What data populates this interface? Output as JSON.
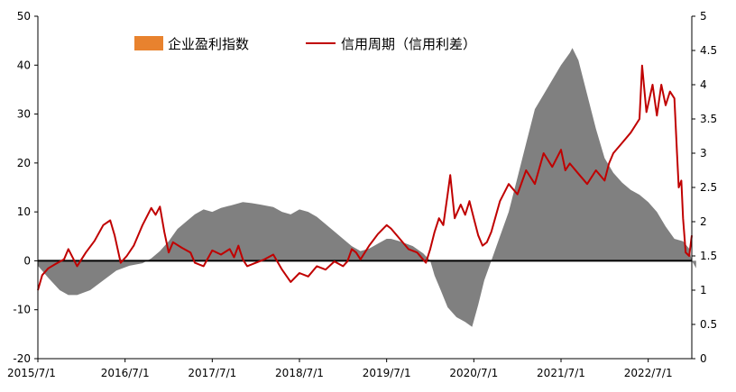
{
  "chart_data": {
    "type": "area",
    "title": "",
    "xlabel": "",
    "ylabel": "",
    "x_tick_labels": [
      "2015/7/1",
      "2016/7/1",
      "2017/7/1",
      "2018/7/1",
      "2019/7/1",
      "2020/7/1",
      "2021/7/1",
      "2022/7/1"
    ],
    "x_tick_years": [
      2015.5,
      2016.5,
      2017.5,
      2018.5,
      2019.5,
      2020.5,
      2021.5,
      2022.5
    ],
    "xlim": [
      2015.5,
      2023.0
    ],
    "y_left_ticks": [
      "50",
      "40",
      "30",
      "20",
      "10",
      "0",
      "-10",
      "-20"
    ],
    "y_right_ticks": [
      "5",
      "4.5",
      "4",
      "3.5",
      "3",
      "2.5",
      "2",
      "1.5",
      "1",
      "0.5",
      "0"
    ],
    "ylim_left": [
      -20,
      50
    ],
    "ylim_right": [
      0,
      5
    ],
    "legend_position": "top-center",
    "colors": {
      "area": "#808080",
      "line": "#c00000",
      "legend_swatch": "#e8822e"
    },
    "series": [
      {
        "name": "企业盈利指数",
        "axis": "left",
        "type": "area",
        "points": [
          [
            2015.5,
            -1.0
          ],
          [
            2015.62,
            -3.5
          ],
          [
            2015.75,
            -6.0
          ],
          [
            2015.85,
            -7.0
          ],
          [
            2015.95,
            -7.0
          ],
          [
            2016.1,
            -6.0
          ],
          [
            2016.25,
            -4.0
          ],
          [
            2016.4,
            -2.0
          ],
          [
            2016.55,
            -1.0
          ],
          [
            2016.7,
            -0.5
          ],
          [
            2016.8,
            0.5
          ],
          [
            2016.9,
            2.0
          ],
          [
            2017.0,
            4.0
          ],
          [
            2017.1,
            6.5
          ],
          [
            2017.2,
            8.0
          ],
          [
            2017.3,
            9.5
          ],
          [
            2017.4,
            10.5
          ],
          [
            2017.5,
            10.0
          ],
          [
            2017.6,
            10.8
          ],
          [
            2017.75,
            11.5
          ],
          [
            2017.85,
            12.0
          ],
          [
            2017.95,
            11.8
          ],
          [
            2018.05,
            11.5
          ],
          [
            2018.2,
            11.0
          ],
          [
            2018.3,
            10.0
          ],
          [
            2018.4,
            9.5
          ],
          [
            2018.5,
            10.5
          ],
          [
            2018.6,
            10.0
          ],
          [
            2018.7,
            9.0
          ],
          [
            2018.8,
            7.5
          ],
          [
            2018.9,
            6.0
          ],
          [
            2019.0,
            4.5
          ],
          [
            2019.1,
            3.0
          ],
          [
            2019.2,
            2.0
          ],
          [
            2019.3,
            2.5
          ],
          [
            2019.4,
            3.5
          ],
          [
            2019.5,
            4.5
          ],
          [
            2019.55,
            4.5
          ],
          [
            2019.65,
            4.0
          ],
          [
            2019.8,
            3.0
          ],
          [
            2019.92,
            1.5
          ],
          [
            2020.0,
            0.0
          ],
          [
            2020.05,
            -3.0
          ],
          [
            2020.12,
            -6.0
          ],
          [
            2020.2,
            -9.5
          ],
          [
            2020.3,
            -11.5
          ],
          [
            2020.4,
            -12.5
          ],
          [
            2020.48,
            -13.5
          ],
          [
            2020.55,
            -9.0
          ],
          [
            2020.62,
            -4.0
          ],
          [
            2020.7,
            0.0
          ],
          [
            2020.8,
            5.0
          ],
          [
            2020.9,
            10.0
          ],
          [
            2021.0,
            17.0
          ],
          [
            2021.1,
            24.0
          ],
          [
            2021.2,
            31.0
          ],
          [
            2021.3,
            34.0
          ],
          [
            2021.4,
            37.0
          ],
          [
            2021.5,
            40.0
          ],
          [
            2021.6,
            42.5
          ],
          [
            2021.63,
            43.5
          ],
          [
            2021.7,
            41.0
          ],
          [
            2021.8,
            34.0
          ],
          [
            2021.9,
            27.0
          ],
          [
            2022.0,
            21.0
          ],
          [
            2022.1,
            18.0
          ],
          [
            2022.2,
            16.0
          ],
          [
            2022.3,
            14.5
          ],
          [
            2022.4,
            13.5
          ],
          [
            2022.5,
            12.0
          ],
          [
            2022.6,
            10.0
          ],
          [
            2022.7,
            7.0
          ],
          [
            2022.8,
            4.5
          ],
          [
            2022.9,
            4.0
          ],
          [
            2022.97,
            2.5
          ],
          [
            2023.0,
            0.0
          ],
          [
            2023.05,
            -1.5
          ]
        ]
      },
      {
        "name": "信用周期（信用利差）",
        "axis": "right",
        "type": "line",
        "points": [
          [
            2015.5,
            1.0
          ],
          [
            2015.55,
            1.22
          ],
          [
            2015.62,
            1.32
          ],
          [
            2015.7,
            1.38
          ],
          [
            2015.8,
            1.45
          ],
          [
            2015.85,
            1.6
          ],
          [
            2015.95,
            1.35
          ],
          [
            2016.05,
            1.55
          ],
          [
            2016.15,
            1.72
          ],
          [
            2016.25,
            1.95
          ],
          [
            2016.33,
            2.02
          ],
          [
            2016.38,
            1.8
          ],
          [
            2016.45,
            1.4
          ],
          [
            2016.52,
            1.5
          ],
          [
            2016.6,
            1.65
          ],
          [
            2016.7,
            1.95
          ],
          [
            2016.8,
            2.2
          ],
          [
            2016.85,
            2.1
          ],
          [
            2016.9,
            2.22
          ],
          [
            2016.95,
            1.85
          ],
          [
            2017.0,
            1.55
          ],
          [
            2017.05,
            1.7
          ],
          [
            2017.15,
            1.62
          ],
          [
            2017.25,
            1.55
          ],
          [
            2017.3,
            1.4
          ],
          [
            2017.4,
            1.35
          ],
          [
            2017.5,
            1.58
          ],
          [
            2017.6,
            1.52
          ],
          [
            2017.7,
            1.6
          ],
          [
            2017.75,
            1.48
          ],
          [
            2017.8,
            1.65
          ],
          [
            2017.85,
            1.45
          ],
          [
            2017.9,
            1.35
          ],
          [
            2018.0,
            1.4
          ],
          [
            2018.1,
            1.45
          ],
          [
            2018.2,
            1.52
          ],
          [
            2018.3,
            1.3
          ],
          [
            2018.4,
            1.12
          ],
          [
            2018.5,
            1.25
          ],
          [
            2018.6,
            1.2
          ],
          [
            2018.7,
            1.35
          ],
          [
            2018.8,
            1.3
          ],
          [
            2018.9,
            1.42
          ],
          [
            2019.0,
            1.35
          ],
          [
            2019.05,
            1.42
          ],
          [
            2019.1,
            1.6
          ],
          [
            2019.15,
            1.55
          ],
          [
            2019.2,
            1.45
          ],
          [
            2019.3,
            1.65
          ],
          [
            2019.4,
            1.82
          ],
          [
            2019.5,
            1.95
          ],
          [
            2019.55,
            1.9
          ],
          [
            2019.65,
            1.75
          ],
          [
            2019.75,
            1.6
          ],
          [
            2019.85,
            1.55
          ],
          [
            2019.95,
            1.4
          ],
          [
            2020.0,
            1.6
          ],
          [
            2020.05,
            1.85
          ],
          [
            2020.1,
            2.05
          ],
          [
            2020.15,
            1.95
          ],
          [
            2020.2,
            2.4
          ],
          [
            2020.23,
            2.68
          ],
          [
            2020.28,
            2.05
          ],
          [
            2020.35,
            2.25
          ],
          [
            2020.4,
            2.1
          ],
          [
            2020.45,
            2.3
          ],
          [
            2020.5,
            2.05
          ],
          [
            2020.55,
            1.8
          ],
          [
            2020.6,
            1.65
          ],
          [
            2020.65,
            1.7
          ],
          [
            2020.7,
            1.85
          ],
          [
            2020.8,
            2.3
          ],
          [
            2020.9,
            2.55
          ],
          [
            2021.0,
            2.4
          ],
          [
            2021.1,
            2.75
          ],
          [
            2021.2,
            2.55
          ],
          [
            2021.3,
            3.0
          ],
          [
            2021.4,
            2.8
          ],
          [
            2021.5,
            3.05
          ],
          [
            2021.55,
            2.75
          ],
          [
            2021.6,
            2.85
          ],
          [
            2021.7,
            2.7
          ],
          [
            2021.8,
            2.55
          ],
          [
            2021.9,
            2.75
          ],
          [
            2022.0,
            2.6
          ],
          [
            2022.05,
            2.85
          ],
          [
            2022.1,
            3.0
          ],
          [
            2022.2,
            3.15
          ],
          [
            2022.3,
            3.3
          ],
          [
            2022.4,
            3.5
          ],
          [
            2022.43,
            4.28
          ],
          [
            2022.48,
            3.6
          ],
          [
            2022.55,
            4.0
          ],
          [
            2022.6,
            3.55
          ],
          [
            2022.65,
            4.0
          ],
          [
            2022.7,
            3.7
          ],
          [
            2022.75,
            3.9
          ],
          [
            2022.8,
            3.8
          ],
          [
            2022.83,
            3.0
          ],
          [
            2022.85,
            2.5
          ],
          [
            2022.88,
            2.6
          ],
          [
            2022.9,
            2.05
          ],
          [
            2022.93,
            1.55
          ],
          [
            2022.97,
            1.5
          ],
          [
            2023.0,
            1.8
          ]
        ]
      }
    ]
  }
}
